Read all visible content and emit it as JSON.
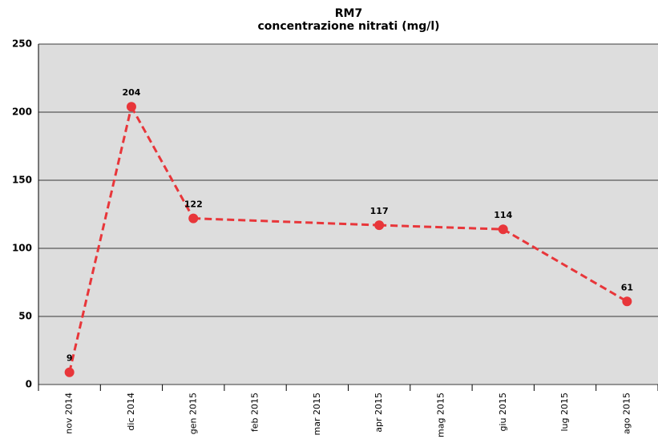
{
  "chart_data": {
    "type": "line",
    "title": [
      "RM7",
      "concentrazione nitrati (mg/l)"
    ],
    "categories": [
      "nov 2014",
      "dic 2014",
      "gen 2015",
      "feb 2015",
      "mar 2015",
      "apr 2015",
      "mag 2015",
      "giu 2015",
      "lug 2015",
      "ago 2015"
    ],
    "series": [
      {
        "color": "#e8363a",
        "values": [
          9,
          204,
          122,
          null,
          null,
          117,
          null,
          114,
          null,
          61
        ]
      }
    ],
    "ylim": [
      0,
      250
    ],
    "yticks": [
      0,
      50,
      100,
      150,
      200,
      250
    ],
    "grid": true
  }
}
